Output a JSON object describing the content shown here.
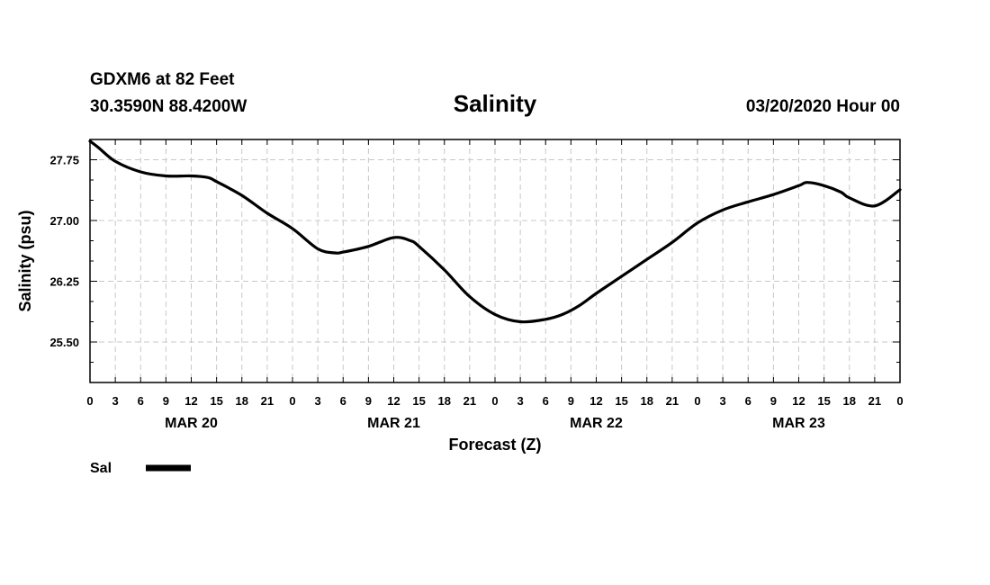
{
  "header": {
    "station": "GDXM6 at 82 Feet",
    "location": "30.3590N 88.4200W",
    "title": "Salinity",
    "run": "03/20/2020 Hour 00"
  },
  "chart_data": {
    "type": "line",
    "title": "Salinity",
    "xlabel": "Forecast (Z)",
    "ylabel": "Salinity (psu)",
    "x_unit": "hours since 03/20/2020 00Z",
    "xlim": [
      0,
      96
    ],
    "ylim": [
      25.0,
      28.0
    ],
    "yticks": [
      25.5,
      26.25,
      27.0,
      27.75
    ],
    "ytick_labels": [
      "25.50",
      "26.25",
      "27.00",
      "27.75"
    ],
    "xticks": [
      0,
      3,
      6,
      9,
      12,
      15,
      18,
      21,
      24,
      27,
      30,
      33,
      36,
      39,
      42,
      45,
      48,
      51,
      54,
      57,
      60,
      63,
      66,
      69,
      72,
      75,
      78,
      81,
      84,
      87,
      90,
      93,
      96
    ],
    "xtick_labels": [
      "0",
      "3",
      "6",
      "9",
      "12",
      "15",
      "18",
      "21",
      "0",
      "3",
      "6",
      "9",
      "12",
      "15",
      "18",
      "21",
      "0",
      "3",
      "6",
      "9",
      "12",
      "15",
      "18",
      "21",
      "0",
      "3",
      "6",
      "9",
      "12",
      "15",
      "18",
      "21",
      "0"
    ],
    "date_labels": [
      {
        "hour": 12,
        "label": "MAR 20"
      },
      {
        "hour": 36,
        "label": "MAR 21"
      },
      {
        "hour": 60,
        "label": "MAR 22"
      },
      {
        "hour": 84,
        "label": "MAR 23"
      }
    ],
    "grid": true,
    "series": [
      {
        "name": "Sal",
        "color": "#000000",
        "x": [
          0,
          1,
          3,
          6,
          9,
          12,
          14,
          15,
          18,
          21,
          24,
          27,
          29,
          30,
          33,
          36,
          38,
          39,
          42,
          45,
          48,
          51,
          54,
          56,
          58,
          60,
          63,
          66,
          69,
          72,
          75,
          78,
          81,
          84,
          85,
          87,
          89,
          90,
          93,
          96
        ],
        "y": [
          27.98,
          27.9,
          27.73,
          27.6,
          27.55,
          27.55,
          27.53,
          27.48,
          27.31,
          27.09,
          26.9,
          26.65,
          26.6,
          26.61,
          26.68,
          26.79,
          26.75,
          26.68,
          26.39,
          26.06,
          25.84,
          25.75,
          25.78,
          25.84,
          25.95,
          26.1,
          26.31,
          26.52,
          26.73,
          26.97,
          27.13,
          27.23,
          27.32,
          27.43,
          27.47,
          27.43,
          27.35,
          27.28,
          27.18,
          27.38
        ]
      }
    ]
  },
  "legend": {
    "label": "Sal",
    "color": "#000000"
  }
}
